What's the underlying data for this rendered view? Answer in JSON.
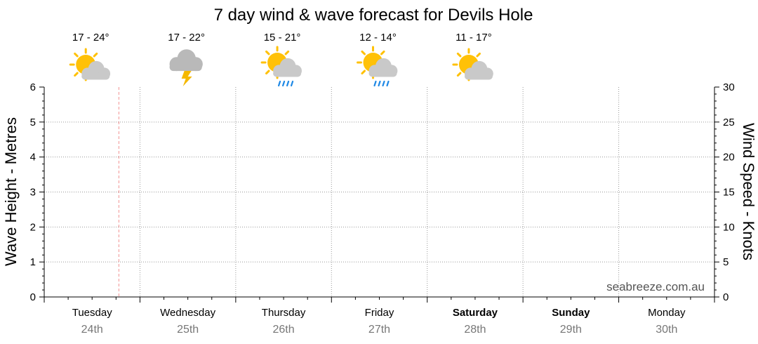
{
  "chart_data": {
    "type": "line",
    "title": "7 day wind & wave forecast for Devils Hole",
    "ylabel_left": "Wave Height - Metres",
    "ylabel_right": "Wind Speed - Knots",
    "ylim_left": [
      0,
      6
    ],
    "ylim_right": [
      0,
      30
    ],
    "left_ticks": [
      "0",
      "1",
      "2",
      "3",
      "4",
      "5",
      "6"
    ],
    "right_ticks": [
      "0",
      "5",
      "10",
      "15",
      "20",
      "25",
      "30"
    ],
    "grid": true,
    "series": [],
    "now_marker_day_fraction": 0.78,
    "days": [
      {
        "name": "Tuesday",
        "date": "24th",
        "bold": false,
        "temp": "17 - 24°",
        "icon": "partly-cloudy-icon"
      },
      {
        "name": "Wednesday",
        "date": "25th",
        "bold": false,
        "temp": "17 - 22°",
        "icon": "thunderstorm-icon"
      },
      {
        "name": "Thursday",
        "date": "26th",
        "bold": false,
        "temp": "15 - 21°",
        "icon": "showers-icon"
      },
      {
        "name": "Friday",
        "date": "27th",
        "bold": false,
        "temp": "12 - 14°",
        "icon": "showers-icon"
      },
      {
        "name": "Saturday",
        "date": "28th",
        "bold": true,
        "temp": "11 - 17°",
        "icon": "partly-cloudy-icon"
      },
      {
        "name": "Sunday",
        "date": "29th",
        "bold": true,
        "temp": "",
        "icon": ""
      },
      {
        "name": "Monday",
        "date": "30th",
        "bold": false,
        "temp": "",
        "icon": ""
      }
    ],
    "watermark": "seabreeze.com.au"
  },
  "colors": {
    "sun": "#FFC107",
    "cloud": "#c9c9c9",
    "rain": "#1e88e5",
    "lightning": "#f5b800",
    "now_line": "#f4a3a3",
    "grid": "#999999"
  }
}
